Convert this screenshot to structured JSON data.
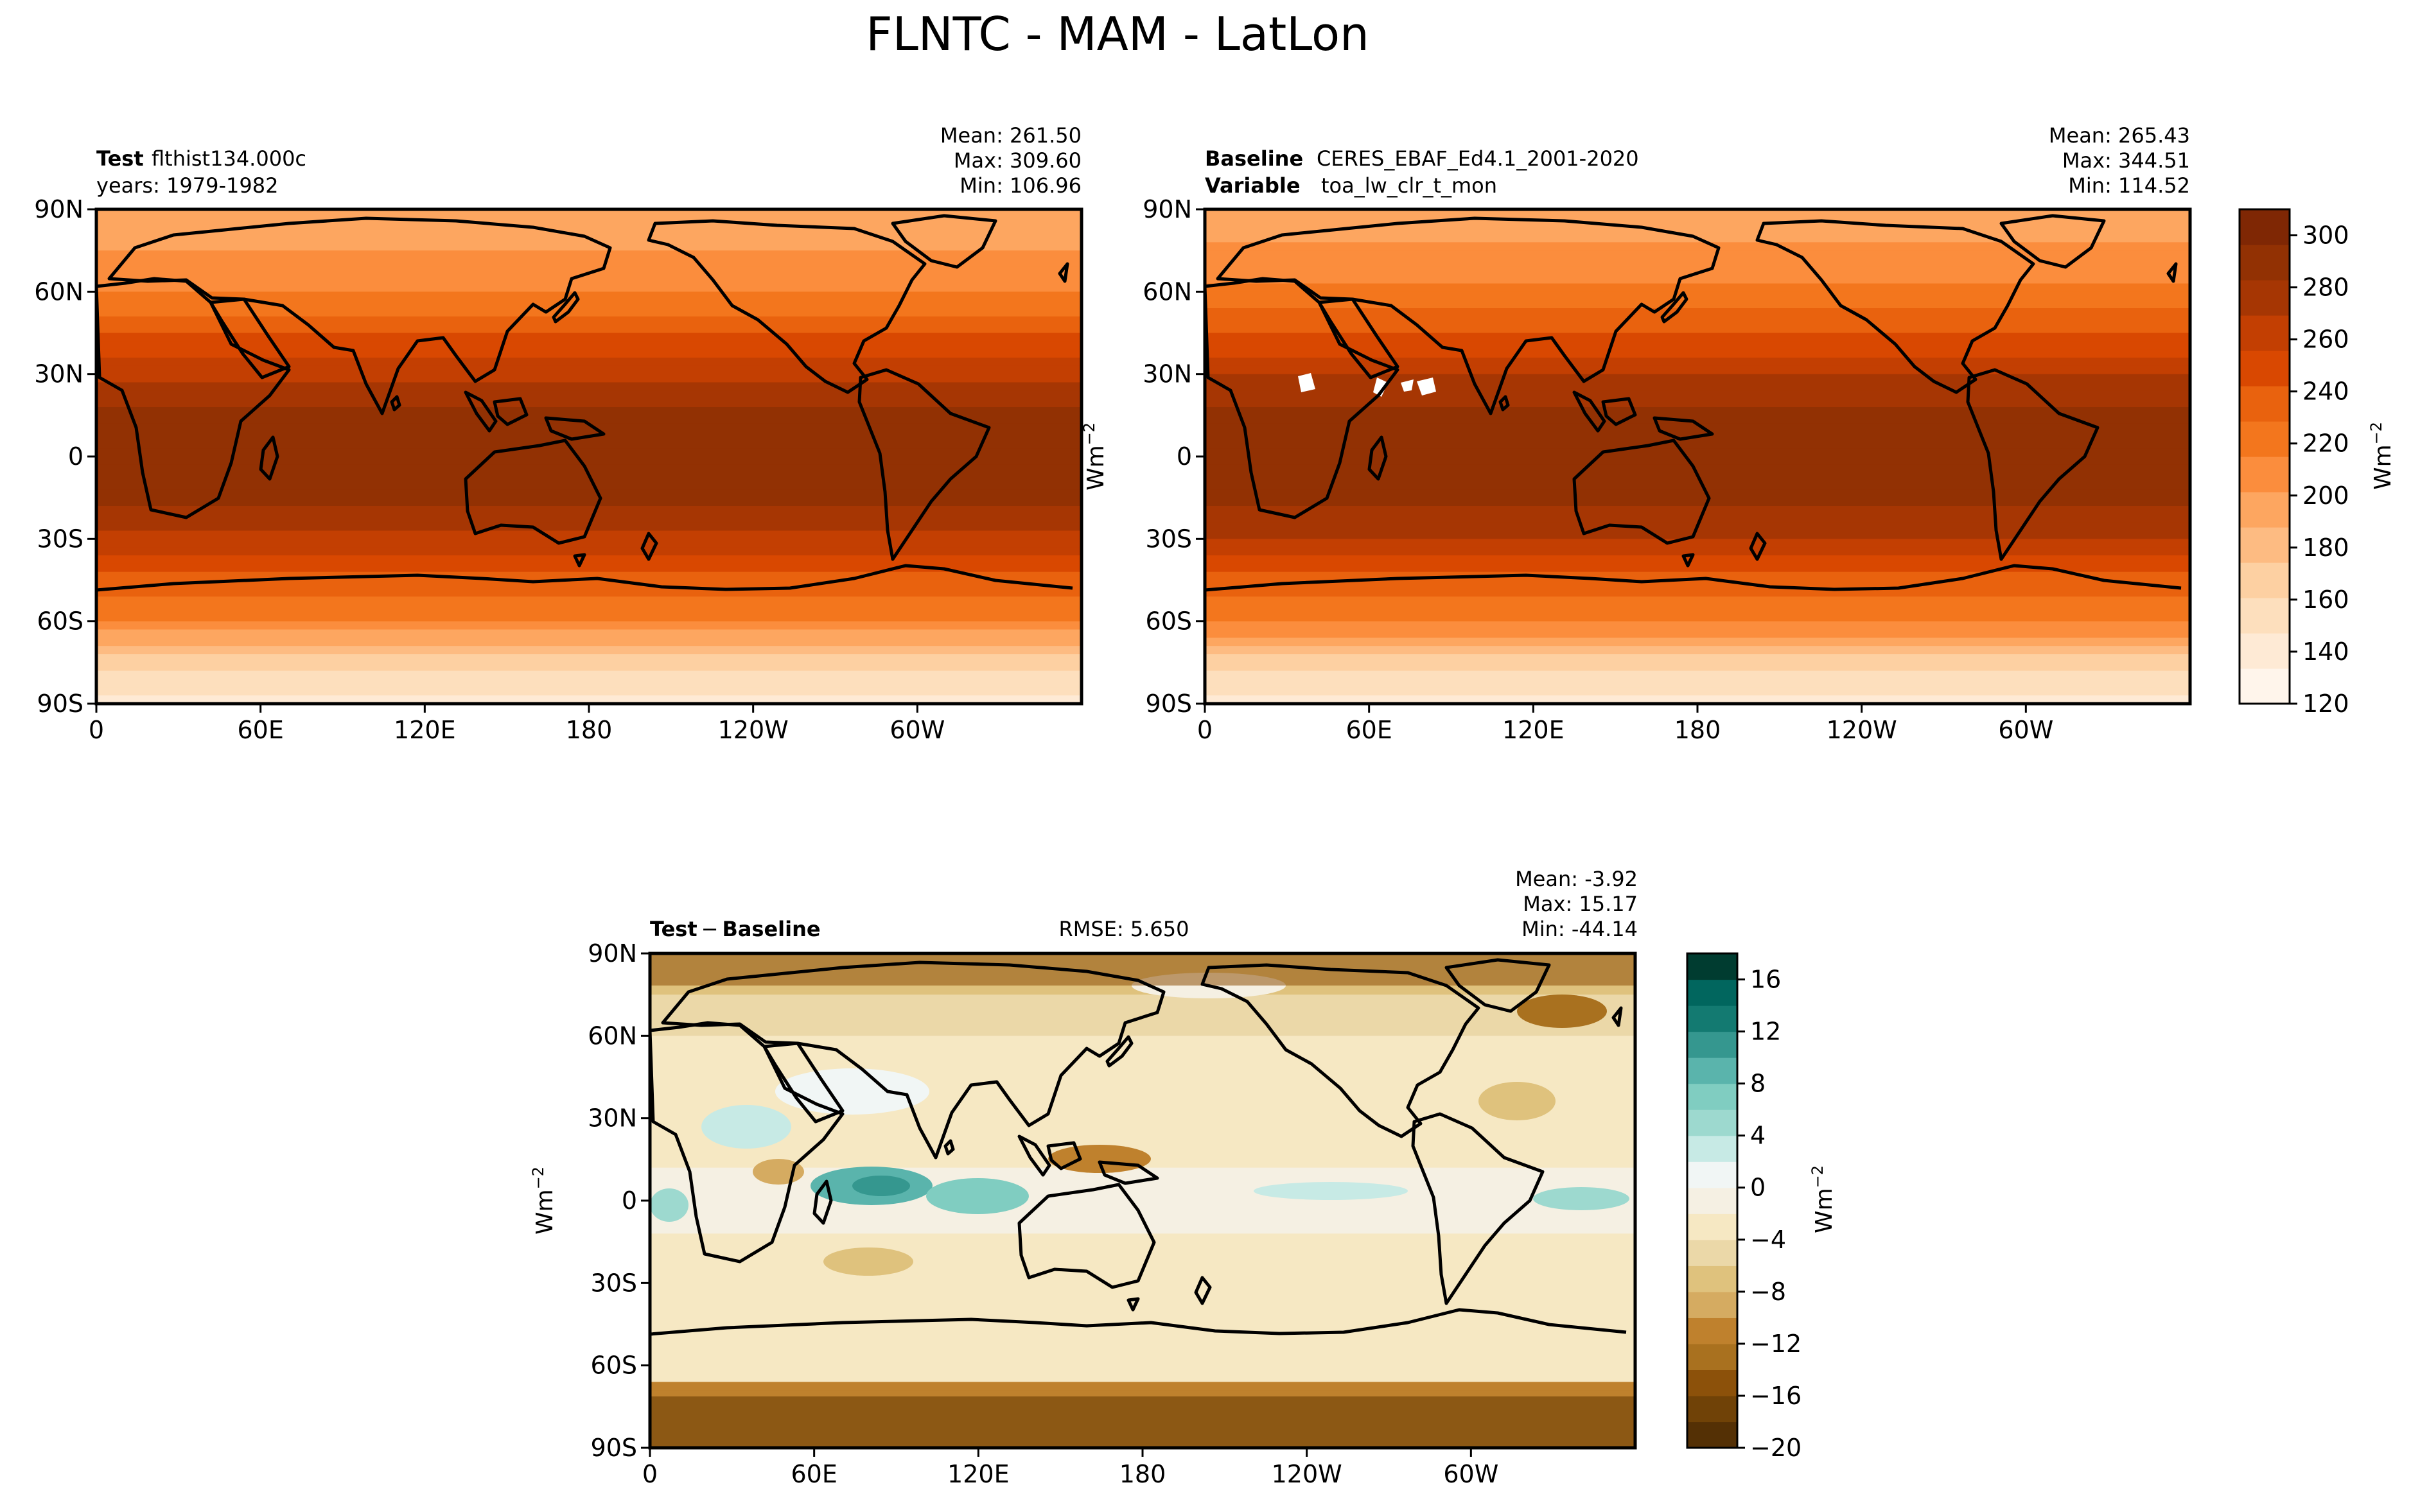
{
  "figure": {
    "title": "FLNTC - MAM - LatLon"
  },
  "colors": {
    "oranges": [
      "#fff5eb",
      "#feead5",
      "#fddfbd",
      "#fdd0a2",
      "#fdbb82",
      "#fda660",
      "#fb8d3d",
      "#f3761d",
      "#e9620e",
      "#d94801",
      "#c33f02",
      "#a63603",
      "#923103",
      "#7f2704"
    ],
    "diff": [
      "#543005",
      "#704207",
      "#8c510a",
      "#a9711f",
      "#bf812d",
      "#d5ab61",
      "#dfc27d",
      "#ebd8a8",
      "#f6e8c3",
      "#f5f0e3",
      "#f1f6f5",
      "#c7eae5",
      "#9dd9cf",
      "#80cdc1",
      "#5ab4ac",
      "#35978f",
      "#137a71",
      "#01665e",
      "#003c30"
    ],
    "coastline": "#000000",
    "missing": "#ffffff"
  },
  "panels": {
    "test": {
      "name_label": "Test",
      "name_value": "flthist134.000c",
      "years": "years: 1979-1982",
      "mean": "Mean: 261.50",
      "max": "Max: 309.60",
      "min": "Min: 106.96"
    },
    "baseline": {
      "name_label": "Baseline",
      "name_value": "CERES_EBAF_Ed4.1_2001-2020",
      "var_label": "Variable",
      "var_value": "toa_lw_clr_t_mon",
      "mean": "Mean: 265.43",
      "max": "Max: 344.51",
      "min": "Min: 114.52"
    },
    "diff": {
      "label_a": "Test",
      "label_minus": "−",
      "label_b": "Baseline",
      "rmse": "RMSE: 5.650",
      "mean": "Mean: -3.92",
      "max": "Max: 15.17",
      "min": "Min: -44.14"
    }
  },
  "units": {
    "base": "Wm",
    "exp": "−2"
  },
  "chart_data": [
    {
      "type": "heatmap",
      "panel": "test",
      "xticks": [
        "0",
        "60E",
        "120E",
        "180",
        "120W",
        "60W"
      ],
      "yticks": [
        "90N",
        "60N",
        "30N",
        "0",
        "30S",
        "60S",
        "90S"
      ],
      "xlim": [
        0,
        360
      ],
      "ylim": [
        -90,
        90
      ],
      "zonal_mean_profile": {
        "lat": [
          90,
          75,
          60,
          45,
          30,
          15,
          0,
          -15,
          -30,
          -45,
          -60,
          -75,
          -90
        ],
        "value": [
          190,
          200,
          215,
          240,
          265,
          285,
          290,
          285,
          265,
          235,
          215,
          165,
          140
        ]
      },
      "stats": {
        "mean": 261.5,
        "max": 309.6,
        "min": 106.96
      }
    },
    {
      "type": "heatmap",
      "panel": "baseline",
      "xticks": [
        "0",
        "60E",
        "120E",
        "180",
        "120W",
        "60W"
      ],
      "yticks": [
        "90N",
        "60N",
        "30N",
        "0",
        "30S",
        "60S",
        "90S"
      ],
      "xlim": [
        0,
        360
      ],
      "ylim": [
        -90,
        90
      ],
      "colorbar": {
        "ticks": [
          120,
          140,
          160,
          180,
          200,
          220,
          240,
          260,
          280,
          300
        ],
        "range": [
          120,
          310
        ]
      },
      "stats": {
        "mean": 265.43,
        "max": 344.51,
        "min": 114.52
      }
    },
    {
      "type": "heatmap",
      "panel": "diff",
      "xticks": [
        "0",
        "60E",
        "120E",
        "180",
        "120W",
        "60W"
      ],
      "yticks": [
        "90N",
        "60N",
        "30N",
        "0",
        "30S",
        "60S",
        "90S"
      ],
      "xlim": [
        0,
        360
      ],
      "ylim": [
        -90,
        90
      ],
      "colorbar": {
        "ticks": [
          -20,
          -16,
          -12,
          -8,
          -4,
          0,
          4,
          8,
          12,
          16
        ],
        "range": [
          -20,
          18
        ]
      },
      "stats": {
        "mean": -3.92,
        "max": 15.17,
        "min": -44.14,
        "rmse": 5.65
      }
    }
  ]
}
